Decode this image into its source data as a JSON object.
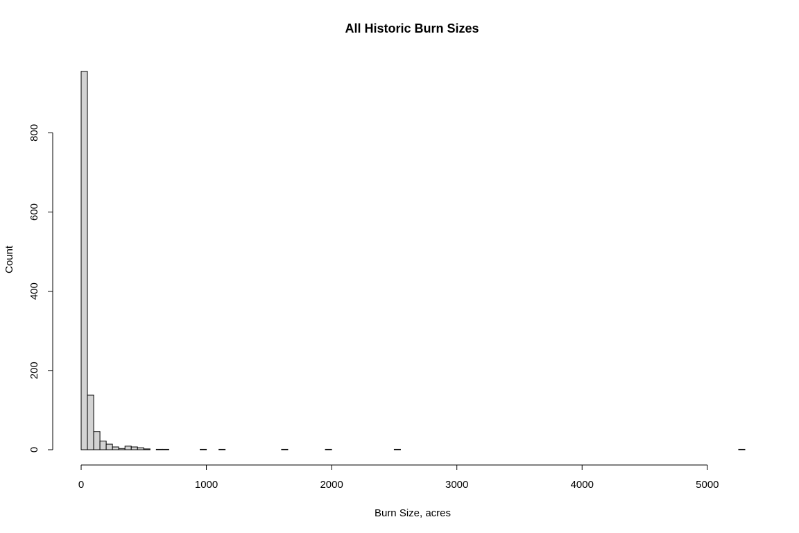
{
  "chart_data": {
    "type": "bar",
    "title": "All Historic Burn Sizes",
    "xlabel": "Burn Size, acres",
    "ylabel": "Count",
    "xlim": [
      0,
      5300
    ],
    "ylim": [
      0,
      960
    ],
    "x_ticks": [
      "0",
      "1000",
      "2000",
      "3000",
      "4000",
      "5000"
    ],
    "y_ticks": [
      "0",
      "200",
      "400",
      "600",
      "800"
    ],
    "grid": false,
    "legend": "none",
    "bin_width": 50,
    "bins": [
      {
        "x0": 0,
        "x1": 50,
        "count": 955
      },
      {
        "x0": 50,
        "x1": 100,
        "count": 138
      },
      {
        "x0": 100,
        "x1": 150,
        "count": 46
      },
      {
        "x0": 150,
        "x1": 200,
        "count": 22
      },
      {
        "x0": 200,
        "x1": 250,
        "count": 14
      },
      {
        "x0": 250,
        "x1": 300,
        "count": 7
      },
      {
        "x0": 300,
        "x1": 350,
        "count": 3
      },
      {
        "x0": 350,
        "x1": 400,
        "count": 9
      },
      {
        "x0": 400,
        "x1": 450,
        "count": 7
      },
      {
        "x0": 450,
        "x1": 500,
        "count": 5
      },
      {
        "x0": 500,
        "x1": 550,
        "count": 2
      },
      {
        "x0": 550,
        "x1": 600,
        "count": 0
      },
      {
        "x0": 600,
        "x1": 650,
        "count": 1
      },
      {
        "x0": 650,
        "x1": 700,
        "count": 1
      },
      {
        "x0": 950,
        "x1": 1000,
        "count": 1
      },
      {
        "x0": 1100,
        "x1": 1150,
        "count": 1
      },
      {
        "x0": 1600,
        "x1": 1650,
        "count": 1
      },
      {
        "x0": 1950,
        "x1": 2000,
        "count": 1
      },
      {
        "x0": 2500,
        "x1": 2550,
        "count": 1
      },
      {
        "x0": 5250,
        "x1": 5300,
        "count": 1
      }
    ],
    "colors": {
      "bar_fill": "#d3d3d3",
      "bar_stroke": "#000000"
    }
  }
}
